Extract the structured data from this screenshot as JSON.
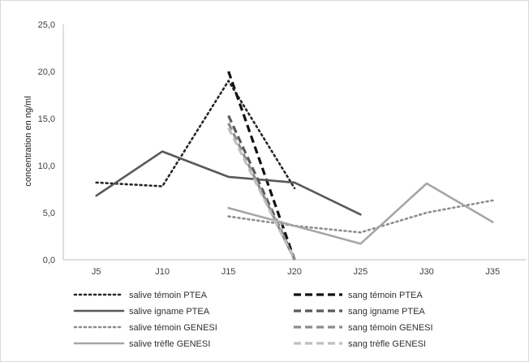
{
  "chart_data": {
    "type": "line",
    "title": "",
    "xlabel": "",
    "ylabel": "concentration en ng/ml",
    "categories": [
      "J5",
      "J10",
      "J15",
      "J20",
      "J25",
      "J30",
      "J35"
    ],
    "ylim": [
      0,
      25
    ],
    "yticks": [
      "0,0",
      "5,0",
      "10,0",
      "15,0",
      "20,0",
      "25,0"
    ],
    "grid": false,
    "legend_position": "bottom",
    "series": [
      {
        "name": "salive témoin PTEA",
        "values": [
          8.2,
          7.8,
          19.0,
          7.6,
          null,
          null,
          null
        ],
        "color": "#262626",
        "style": "dotted"
      },
      {
        "name": "sang témoin PTEA",
        "values": [
          null,
          null,
          20.0,
          0.0,
          null,
          null,
          null
        ],
        "color": "#111111",
        "style": "dashed"
      },
      {
        "name": "salive igname PTEA",
        "values": [
          6.8,
          11.5,
          8.8,
          8.2,
          4.8,
          null,
          null
        ],
        "color": "#595959",
        "style": "solid"
      },
      {
        "name": "sang igname PTEA",
        "values": [
          null,
          null,
          15.3,
          0.0,
          null,
          null,
          null
        ],
        "color": "#595959",
        "style": "dashed"
      },
      {
        "name": "salive témoin GENESI",
        "values": [
          null,
          null,
          4.6,
          3.6,
          2.9,
          5.0,
          6.3
        ],
        "color": "#8c8c8c",
        "style": "dotted"
      },
      {
        "name": "sang témoin GENESI",
        "values": [
          null,
          null,
          14.5,
          0.0,
          null,
          null,
          null
        ],
        "color": "#8c8c8c",
        "style": "dashed"
      },
      {
        "name": "salive trèfle GENESI",
        "values": [
          null,
          null,
          5.5,
          3.6,
          1.7,
          8.1,
          4.0
        ],
        "color": "#a6a6a6",
        "style": "solid"
      },
      {
        "name": "sang trèfle GENESI",
        "values": [
          null,
          null,
          14.0,
          0.0,
          null,
          null,
          null
        ],
        "color": "#bfbfbf",
        "style": "dashed"
      }
    ]
  }
}
